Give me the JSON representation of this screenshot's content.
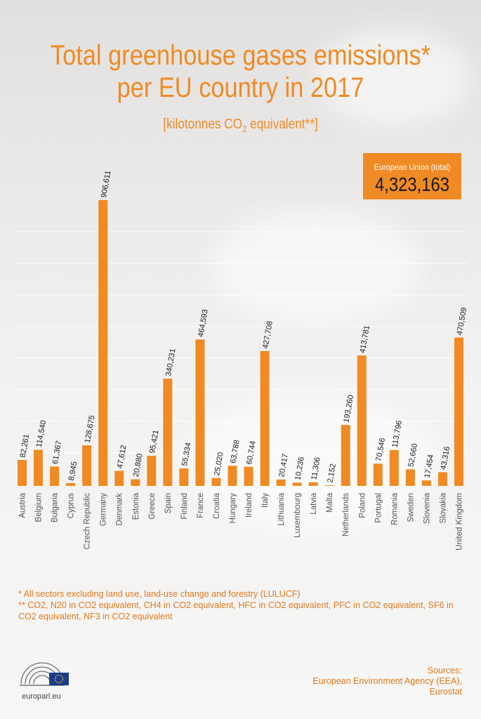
{
  "title_line1": "Total greenhouse gases emissions*",
  "title_line2": "per EU country in 2017",
  "subtitle_prefix": "[kilotonnes CO",
  "subtitle_sub": "2",
  "subtitle_suffix": " equivalent**]",
  "eu_total": {
    "label": "European Union (total)",
    "value": "4,323,163"
  },
  "footnote1": "*  All sectors excluding land use, land-use change and forestry (LULUCF)",
  "footnote2": "** CO2, N20 in CO2 equivalent, CH4 in CO2 equivalent, HFC in CO2 equivalent, PFC in CO2 equivalent, SF6 in CO2 equivalent, NF3 in CO2 equivalent",
  "sources": {
    "heading": "Sources:",
    "line1": "European Environment Agency (EEA),",
    "line2": "Eurostat"
  },
  "site": "europarl.eu",
  "colors": {
    "bar": "#f08a24",
    "text": "#f08a24",
    "grid": "#ffffff"
  },
  "chart_data": {
    "type": "bar",
    "categories": [
      "Austria",
      "Belgium",
      "Bulgaria",
      "Cyprus",
      "Czech Republic",
      "Germany",
      "Denmark",
      "Estonia",
      "Greece",
      "Spain",
      "Finland",
      "France",
      "Croatia",
      "Hungary",
      "Ireland",
      "Italy",
      "Lithuania",
      "Luxembourg",
      "Latvia",
      "Malta",
      "Netherlands",
      "Poland",
      "Portugal",
      "Romania",
      "Sweden",
      "Slovenia",
      "Slovakia",
      "United Kingdom"
    ],
    "values": [
      82261,
      114540,
      61367,
      8945,
      128675,
      906611,
      47612,
      20880,
      95421,
      340231,
      55334,
      464593,
      25020,
      63788,
      60744,
      427708,
      20417,
      10236,
      11306,
      2152,
      193260,
      413781,
      70546,
      113796,
      52660,
      17454,
      43316,
      470509
    ],
    "value_labels": [
      "82,261",
      "114,540",
      "61,367",
      "8,945",
      "128,675",
      "906,611",
      "47,612",
      "20,880",
      "95,421",
      "340,231",
      "55,334",
      "464,593",
      "25,020",
      "63,788",
      "60,744",
      "427,708",
      "20,417",
      "10,236",
      "11,306",
      "2,152",
      "193,260",
      "413,781",
      "70,546",
      "113,796",
      "52,660",
      "17,454",
      "43,316",
      "470,509"
    ],
    "ylim": [
      0,
      906611
    ],
    "grid": true
  }
}
